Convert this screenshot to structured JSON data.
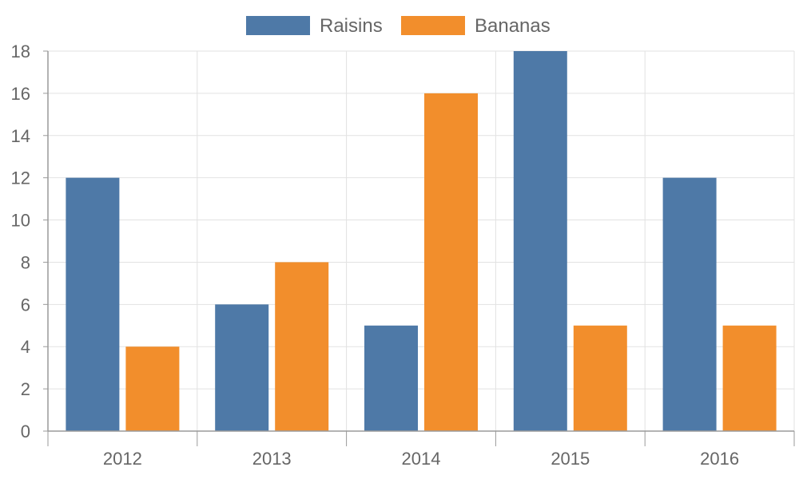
{
  "chart_data": {
    "type": "bar",
    "categories": [
      "2012",
      "2013",
      "2014",
      "2015",
      "2016"
    ],
    "series": [
      {
        "name": "Raisins",
        "values": [
          12,
          6,
          5,
          18,
          12
        ],
        "color": "#4e79a7"
      },
      {
        "name": "Bananas",
        "values": [
          4,
          8,
          16,
          5,
          5
        ],
        "color": "#f28e2c"
      }
    ],
    "title": "",
    "xlabel": "",
    "ylabel": "",
    "ylim": [
      0,
      18
    ],
    "y_ticks": [
      "0",
      "2",
      "4",
      "6",
      "8",
      "10",
      "12",
      "14",
      "16",
      "18"
    ],
    "grid": true,
    "legend_position": "top"
  }
}
